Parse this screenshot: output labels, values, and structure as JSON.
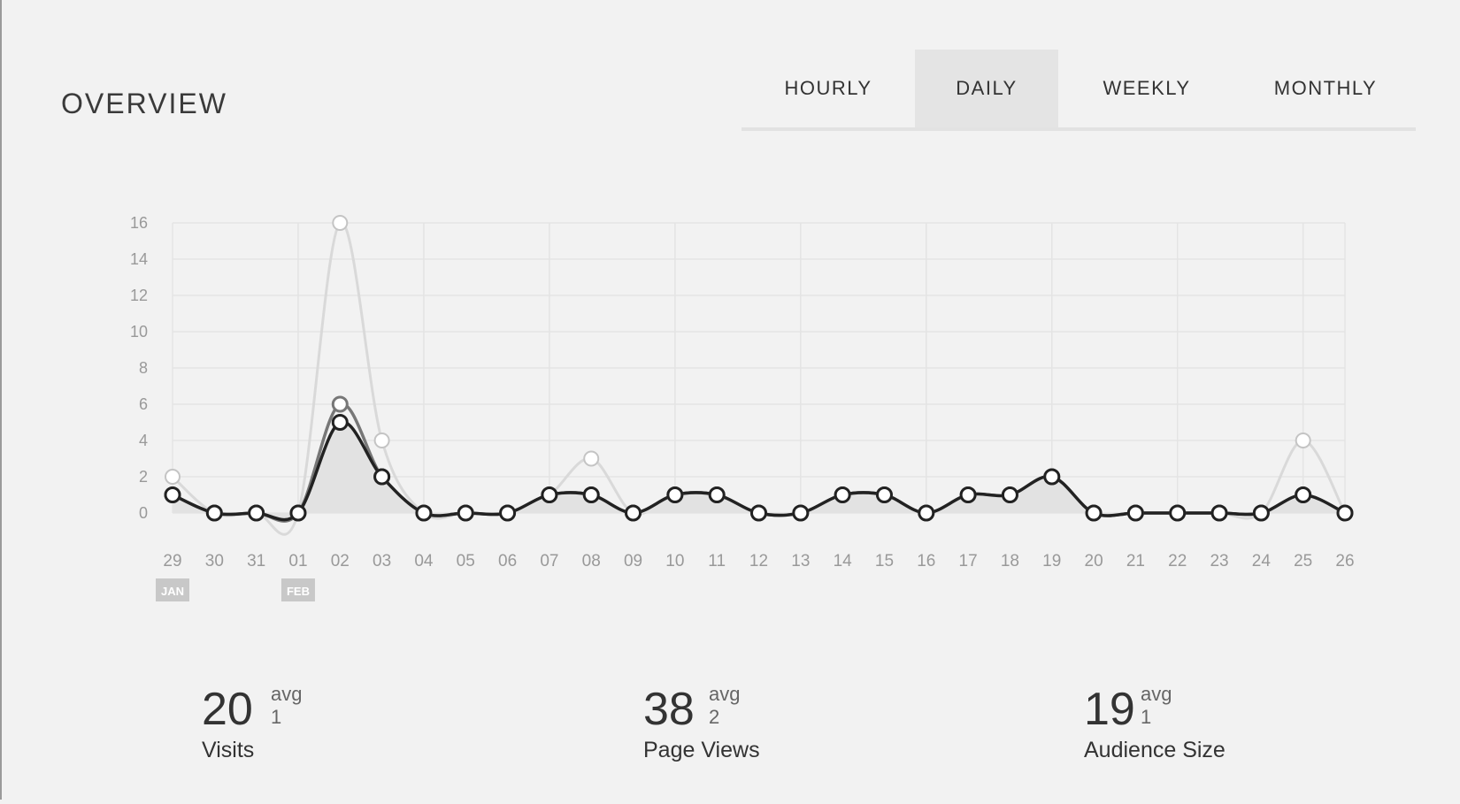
{
  "header": {
    "title": "OVERVIEW"
  },
  "tabs": [
    {
      "label": "HOURLY",
      "active": false
    },
    {
      "label": "DAILY",
      "active": true
    },
    {
      "label": "WEEKLY",
      "active": false
    },
    {
      "label": "MONTHLY",
      "active": false
    }
  ],
  "chart_data": {
    "type": "line",
    "title": "",
    "xlabel": "",
    "ylabel": "",
    "ylim": [
      0,
      16
    ],
    "yticks": [
      0,
      2,
      4,
      6,
      8,
      10,
      12,
      14,
      16
    ],
    "grid": true,
    "legend": "none",
    "categories": [
      "29",
      "30",
      "31",
      "01",
      "02",
      "03",
      "04",
      "05",
      "06",
      "07",
      "08",
      "09",
      "10",
      "11",
      "12",
      "13",
      "14",
      "15",
      "16",
      "17",
      "18",
      "19",
      "20",
      "21",
      "22",
      "23",
      "24",
      "25",
      "26"
    ],
    "month_markers": [
      {
        "label": "JAN",
        "category": "29"
      },
      {
        "label": "FEB",
        "category": "01"
      }
    ],
    "series": [
      {
        "values": [
          2,
          0,
          0,
          0,
          16,
          4,
          0,
          0,
          0,
          1,
          3,
          0,
          1,
          1,
          0,
          0,
          1,
          1,
          0,
          1,
          1,
          2,
          0,
          0,
          0,
          0,
          0,
          4,
          0
        ],
        "color": "#d9d9d9",
        "markers": true
      },
      {
        "values": [
          1,
          0,
          0,
          0,
          6,
          2,
          0,
          0,
          0,
          1,
          1,
          0,
          1,
          1,
          0,
          0,
          1,
          1,
          0,
          1,
          1,
          2,
          0,
          0,
          0,
          0,
          0,
          1,
          0
        ],
        "color": "#777777",
        "markers": true
      },
      {
        "values": [
          1,
          0,
          0,
          0,
          5,
          2,
          0,
          0,
          0,
          1,
          1,
          0,
          1,
          1,
          0,
          0,
          1,
          1,
          0,
          1,
          1,
          2,
          0,
          0,
          0,
          0,
          0,
          1,
          0
        ],
        "color": "#222222",
        "markers": true,
        "fill": "#e2e2e2"
      }
    ]
  },
  "stats": [
    {
      "value": "20",
      "avg_label": "avg",
      "avg_value": "1",
      "label": "Visits"
    },
    {
      "value": "38",
      "avg_label": "avg",
      "avg_value": "2",
      "label": "Page Views"
    },
    {
      "value": "19",
      "avg_label": "avg",
      "avg_value": "1",
      "label": "Audience Size"
    }
  ]
}
